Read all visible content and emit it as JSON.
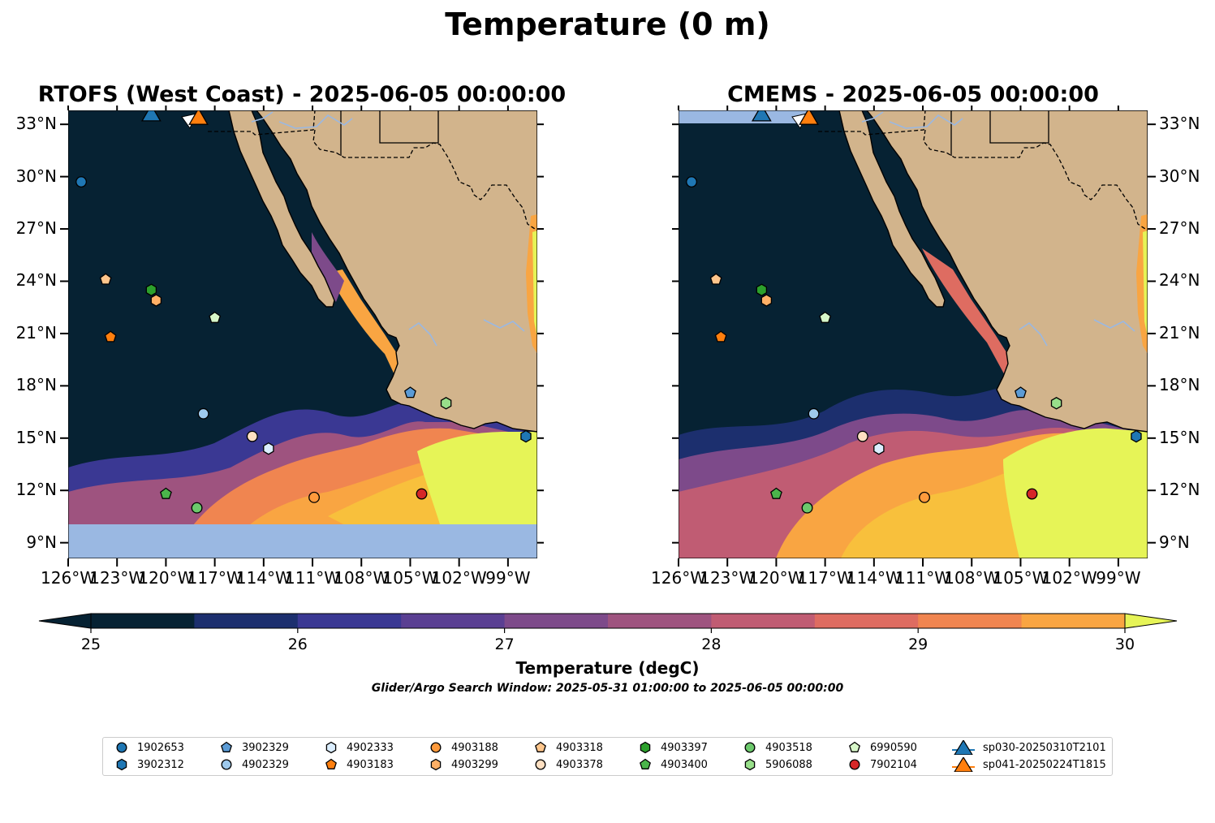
{
  "figure_title": "Temperature (0 m)",
  "panels": [
    {
      "key": "rtofs",
      "title": "RTOFS (West Coast) - 2025-06-05 00:00:00"
    },
    {
      "key": "cmems",
      "title": "CMEMS - 2025-06-05 00:00:00"
    }
  ],
  "axes": {
    "lon_labels": [
      "126°W",
      "123°W",
      "120°W",
      "117°W",
      "114°W",
      "111°W",
      "108°W",
      "105°W",
      "102°W",
      "99°W"
    ],
    "lon_values": [
      -126,
      -123,
      -120,
      -117,
      -114,
      -111,
      -108,
      -105,
      -102,
      -99
    ],
    "lat_labels": [
      "33°N",
      "30°N",
      "27°N",
      "24°N",
      "21°N",
      "18°N",
      "15°N",
      "12°N",
      "9°N"
    ],
    "lat_values": [
      33,
      30,
      27,
      24,
      21,
      18,
      15,
      12,
      9
    ],
    "lon_range": [
      -126,
      -97.2
    ],
    "lat_range": [
      8.1,
      33.8
    ]
  },
  "colorbar": {
    "label": "Temperature (degC)",
    "tick_labels": [
      "25",
      "26",
      "27",
      "28",
      "29",
      "30"
    ],
    "range": [
      25,
      30
    ],
    "extend": "both",
    "colors": [
      "#062233",
      "#1c2f6e",
      "#3a3893",
      "#5a3f92",
      "#7d4a8a",
      "#9e537f",
      "#c05c73",
      "#de6c61",
      "#f08550",
      "#f9a542",
      "#f8c03c",
      "#e6f457"
    ]
  },
  "search_window": "Glider/Argo Search Window: 2025-05-31 01:00:00 to 2025-06-05 00:00:00",
  "colors": {
    "land": "#d2b48c",
    "ocean_nodata": "#9ab8e2",
    "river": "#9ab8e2"
  },
  "legend": [
    {
      "label": "1902653",
      "marker": "circle",
      "color": "#1f77b4"
    },
    {
      "label": "3902312",
      "marker": "hexagon",
      "color": "#1f77b4"
    },
    {
      "label": "3902329",
      "marker": "pentagon",
      "color": "#5b9bd5"
    },
    {
      "label": "4902329",
      "marker": "circle",
      "color": "#9ec9ec"
    },
    {
      "label": "4902333",
      "marker": "hexagon",
      "color": "#dbeeff"
    },
    {
      "label": "4903183",
      "marker": "pentagon",
      "color": "#ff7f0e"
    },
    {
      "label": "4903188",
      "marker": "circle",
      "color": "#ff9a3c"
    },
    {
      "label": "4903299",
      "marker": "hexagon",
      "color": "#ffb066"
    },
    {
      "label": "4903318",
      "marker": "pentagon",
      "color": "#ffc68c"
    },
    {
      "label": "4903378",
      "marker": "circle",
      "color": "#ffe0c2"
    },
    {
      "label": "4903397",
      "marker": "hexagon",
      "color": "#2ca02c"
    },
    {
      "label": "4903400",
      "marker": "pentagon",
      "color": "#4bb54b"
    },
    {
      "label": "4903518",
      "marker": "circle",
      "color": "#6cc96c"
    },
    {
      "label": "5906088",
      "marker": "hexagon",
      "color": "#98df8a"
    },
    {
      "label": "6990590",
      "marker": "pentagon",
      "color": "#d7f7c9"
    },
    {
      "label": "7902104",
      "marker": "circle",
      "color": "#d62728"
    },
    {
      "label": "sp030-20250310T2101",
      "marker": "triangle",
      "color": "#1f77b4"
    },
    {
      "label": "sp041-20250224T1815",
      "marker": "triangle",
      "color": "#ff7f0e"
    }
  ],
  "floats": [
    {
      "id": "1902653",
      "lon": -125.2,
      "lat": 29.7
    },
    {
      "id": "4903318",
      "lon": -123.7,
      "lat": 24.1
    },
    {
      "id": "4903397",
      "lon": -120.9,
      "lat": 23.5
    },
    {
      "id": "4903299",
      "lon": -120.6,
      "lat": 22.9
    },
    {
      "id": "6990590",
      "lon": -117.0,
      "lat": 21.9
    },
    {
      "id": "4903183",
      "lon": -123.4,
      "lat": 20.8
    },
    {
      "id": "3902329",
      "lon": -105.0,
      "lat": 17.6
    },
    {
      "id": "5906088",
      "lon": -102.8,
      "lat": 17.0
    },
    {
      "id": "4902329",
      "lon": -117.7,
      "lat": 16.4
    },
    {
      "id": "4903378",
      "lon": -114.7,
      "lat": 15.1
    },
    {
      "id": "4902333",
      "lon": -113.7,
      "lat": 14.4
    },
    {
      "id": "3902312",
      "lon": -97.9,
      "lat": 15.1
    },
    {
      "id": "4903400",
      "lon": -120.0,
      "lat": 11.8
    },
    {
      "id": "4903518",
      "lon": -118.1,
      "lat": 11.0
    },
    {
      "id": "4903188",
      "lon": -110.9,
      "lat": 11.6
    },
    {
      "id": "7902104",
      "lon": -104.3,
      "lat": 11.8
    }
  ],
  "gliders": [
    {
      "id": "sp030-20250310T2101",
      "lon": -120.9,
      "lat": 33.5
    },
    {
      "id": "sp041-20250224T1815",
      "lon": -118.0,
      "lat": 33.3
    }
  ]
}
